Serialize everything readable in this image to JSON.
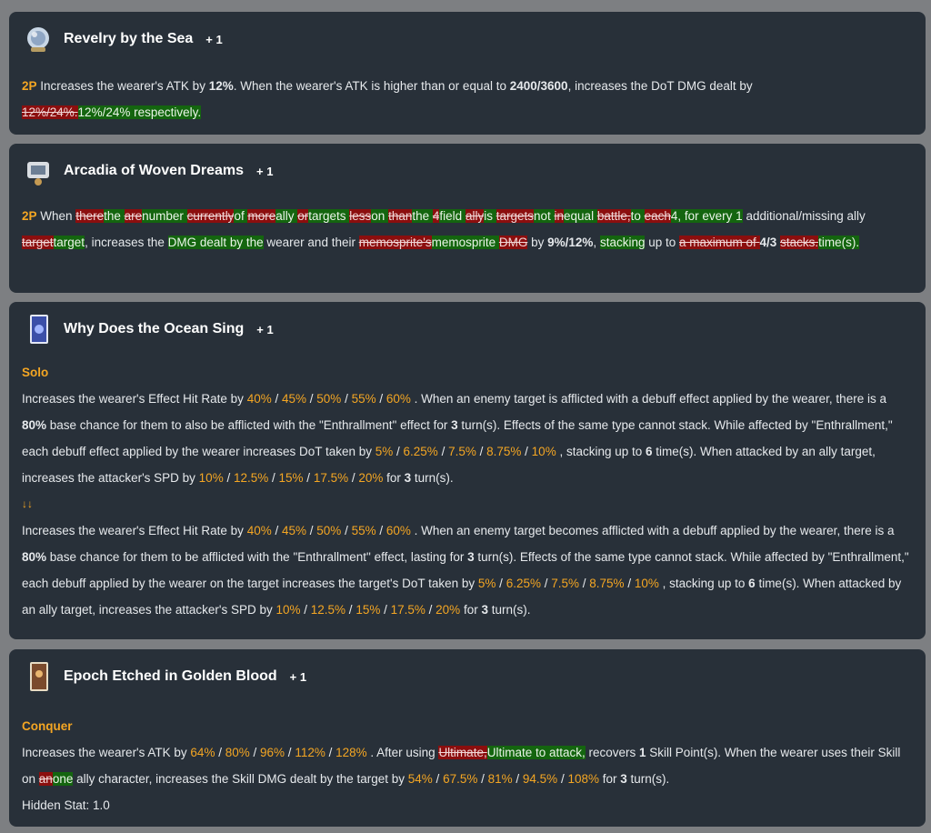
{
  "cards": [
    {
      "name": "Revelry by the Sea",
      "plus": "+ 1",
      "label": "2P",
      "text": [
        "Increases the wearer's ATK by ",
        "12%",
        ". When the wearer's ATK is higher than or equal to ",
        "2400/3600",
        ", increases the DoT DMG dealt by",
        "12%/24%.",
        "12%/24% respectively."
      ]
    },
    {
      "name": "Arcadia of Woven Dreams",
      "plus": "+ 1",
      "label": "2P",
      "segments": [
        {
          "t": "When ",
          "c": ""
        },
        {
          "t": "there",
          "c": "d"
        },
        {
          "t": "the ",
          "c": "a"
        },
        {
          "t": "are",
          "c": "d"
        },
        {
          "t": "number ",
          "c": "a"
        },
        {
          "t": "currently",
          "c": "d"
        },
        {
          "t": "of ",
          "c": "a"
        },
        {
          "t": "more",
          "c": "d"
        },
        {
          "t": "ally ",
          "c": "a"
        },
        {
          "t": "or",
          "c": "d"
        },
        {
          "t": "targets ",
          "c": "a"
        },
        {
          "t": "less",
          "c": "d"
        },
        {
          "t": "on ",
          "c": "a"
        },
        {
          "t": "than",
          "c": "d"
        },
        {
          "t": "the ",
          "c": "a"
        },
        {
          "t": "4",
          "c": "d"
        },
        {
          "t": "field ",
          "c": "a"
        },
        {
          "t": "ally",
          "c": "d"
        },
        {
          "t": "is ",
          "c": "a"
        },
        {
          "t": "targets",
          "c": "d"
        },
        {
          "t": "not ",
          "c": "a"
        },
        {
          "t": "in",
          "c": "d"
        },
        {
          "t": "equal ",
          "c": "a"
        },
        {
          "t": "battle,",
          "c": "d"
        },
        {
          "t": "to ",
          "c": "a"
        },
        {
          "t": "each",
          "c": "d"
        },
        {
          "t": "4, for every 1",
          "c": "a"
        },
        {
          "t": " additional/missing ally ",
          "c": ""
        },
        {
          "t": "target",
          "c": "d"
        },
        {
          "t": "target",
          "c": "a"
        },
        {
          "t": ", increases the ",
          "c": ""
        },
        {
          "t": "DMG dealt by the",
          "c": "a"
        },
        {
          "t": " wearer and their ",
          "c": ""
        },
        {
          "t": "memosprite's",
          "c": "d"
        },
        {
          "t": "memosprite ",
          "c": "a"
        },
        {
          "t": "DMG",
          "c": "d"
        },
        {
          "t": " by ",
          "c": ""
        },
        {
          "t": "9%/12%",
          "c": "b"
        },
        {
          "t": ", ",
          "c": ""
        },
        {
          "t": "stacking",
          "c": "a"
        },
        {
          "t": " up to ",
          "c": ""
        },
        {
          "t": "a maximum of ",
          "c": "d"
        },
        {
          "t": "4/3",
          "c": "b"
        },
        {
          "t": " ",
          "c": ""
        },
        {
          "t": "stacks.",
          "c": "d"
        },
        {
          "t": "time(s).",
          "c": "a"
        }
      ]
    },
    {
      "name": "Why Does the Ocean Sing",
      "plus": "+ 1",
      "sublabel": "Solo",
      "arrows": "↓↓"
    },
    {
      "name": "Epoch Etched in Golden Blood",
      "plus": "+ 1",
      "sublabel": "Conquer",
      "hidden": "Hidden Stat: 1.0"
    }
  ],
  "colors": {
    "accent": "#f4a623",
    "removed": "#8b0e0e",
    "added": "#14650f",
    "card": "#283039",
    "page": "#7d7f82"
  }
}
